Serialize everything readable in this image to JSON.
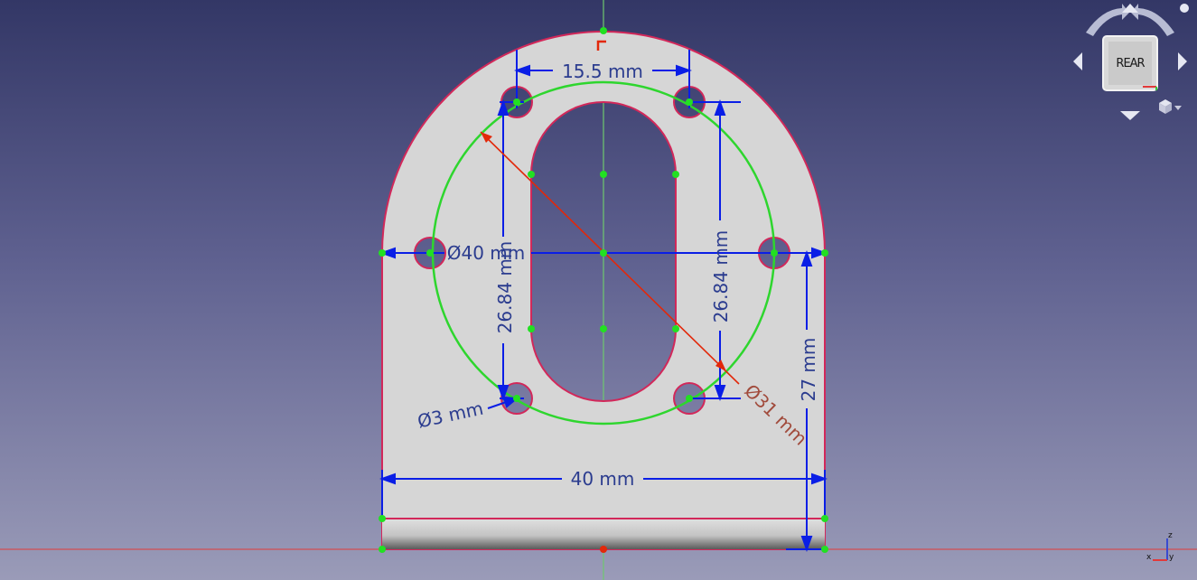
{
  "navigation_cube": {
    "face_label": "REAR"
  },
  "axis_triad": {
    "x_label": "x",
    "y_label": "y",
    "z_label": "z"
  },
  "dimensions": {
    "top_width": "15.5 mm",
    "diameter_large": "Ø40 mm",
    "left_height": "26.84 mm",
    "right_height": "26.84 mm",
    "hole_diameter": "Ø3 mm",
    "bolt_circle_diameter": "Ø31 mm",
    "bottom_width": "40 mm",
    "side_height": "27 mm"
  },
  "colors": {
    "dimension": "#0a1ee6",
    "dimension_text": "#2b3c8f",
    "radius_dimension": "#e2280a",
    "construction_circle": "#2ed62e",
    "vertex": "#22e022",
    "outline": "#d2285a",
    "part_face": "#d6d6d6",
    "axis_x": "#e23a3a",
    "axis_y": "#6ec86e"
  }
}
